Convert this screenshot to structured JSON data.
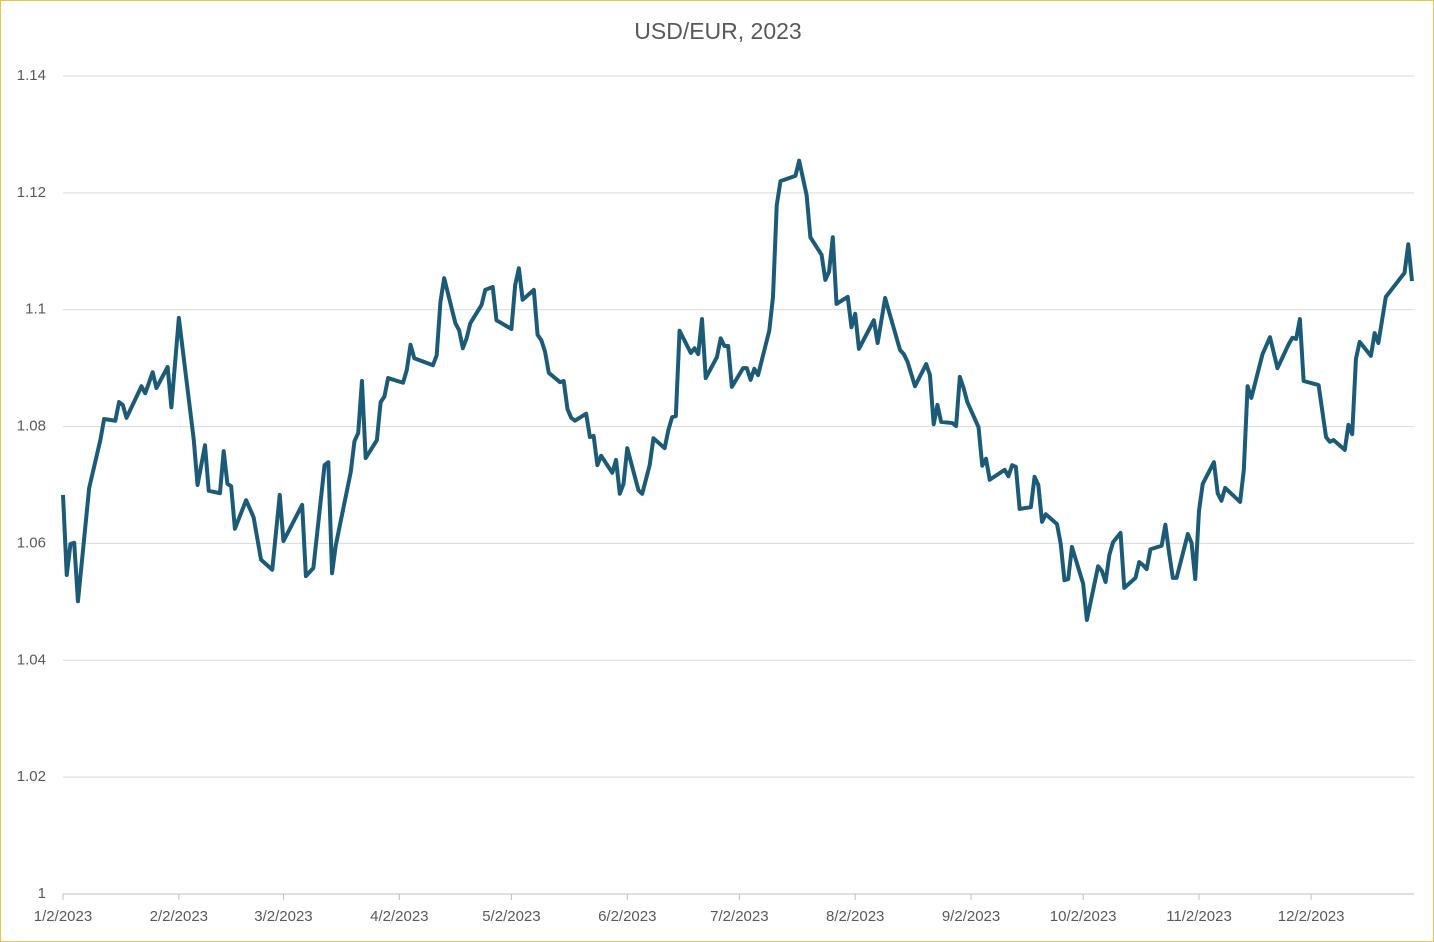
{
  "chart_data": {
    "type": "line",
    "title": "USD/EUR, 2023",
    "color": "#1b5b78",
    "grid": true,
    "xlim": [
      "1/2/2023",
      "12/29/2023"
    ],
    "xticks": [
      "1/2/2023",
      "2/2/2023",
      "3/2/2023",
      "4/2/2023",
      "5/2/2023",
      "6/2/2023",
      "7/2/2023",
      "8/2/2023",
      "9/2/2023",
      "10/2/2023",
      "11/2/2023",
      "12/2/2023"
    ],
    "ylim": [
      1,
      1.14
    ],
    "yticks": [
      1,
      1.02,
      1.04,
      1.06,
      1.08,
      1.1,
      1.12,
      1.14
    ],
    "x": [
      "1/2/2023",
      "1/3/2023",
      "1/4/2023",
      "1/5/2023",
      "1/6/2023",
      "1/9/2023",
      "1/12/2023",
      "1/13/2023",
      "1/16/2023",
      "1/17/2023",
      "1/18/2023",
      "1/19/2023",
      "1/23/2023",
      "1/24/2023",
      "1/26/2023",
      "1/27/2023",
      "1/30/2023",
      "1/31/2023",
      "2/2/2023",
      "2/6/2023",
      "2/7/2023",
      "2/9/2023",
      "2/10/2023",
      "2/13/2023",
      "2/14/2023",
      "2/15/2023",
      "2/16/2023",
      "2/17/2023",
      "2/20/2023",
      "2/22/2023",
      "2/24/2023",
      "2/27/2023",
      "3/1/2023",
      "3/2/2023",
      "3/7/2023",
      "3/8/2023",
      "3/10/2023",
      "3/13/2023",
      "3/14/2023",
      "3/15/2023",
      "3/16/2023",
      "3/20/2023",
      "3/21/2023",
      "3/22/2023",
      "3/23/2023",
      "3/24/2023",
      "3/27/2023",
      "3/28/2023",
      "3/29/2023",
      "3/30/2023",
      "4/3/2023",
      "4/4/2023",
      "4/5/2023",
      "4/6/2023",
      "4/11/2023",
      "4/12/2023",
      "4/13/2023",
      "4/14/2023",
      "4/17/2023",
      "4/18/2023",
      "4/19/2023",
      "4/20/2023",
      "4/21/2023",
      "4/24/2023",
      "4/25/2023",
      "4/27/2023",
      "4/28/2023",
      "5/2/2023",
      "5/3/2023",
      "5/4/2023",
      "5/5/2023",
      "5/8/2023",
      "5/9/2023",
      "5/10/2023",
      "5/11/2023",
      "5/12/2023",
      "5/15/2023",
      "5/16/2023",
      "5/17/2023",
      "5/18/2023",
      "5/19/2023",
      "5/22/2023",
      "5/23/2023",
      "5/24/2023",
      "5/25/2023",
      "5/26/2023",
      "5/29/2023",
      "5/30/2023",
      "5/31/2023",
      "6/1/2023",
      "6/2/2023",
      "6/5/2023",
      "6/6/2023",
      "6/8/2023",
      "6/9/2023",
      "6/12/2023",
      "6/13/2023",
      "6/14/2023",
      "6/15/2023",
      "6/16/2023",
      "6/19/2023",
      "6/20/2023",
      "6/21/2023",
      "6/22/2023",
      "6/23/2023",
      "6/26/2023",
      "6/27/2023",
      "6/28/2023",
      "6/29/2023",
      "6/30/2023",
      "7/3/2023",
      "7/4/2023",
      "7/5/2023",
      "7/6/2023",
      "7/7/2023",
      "7/10/2023",
      "7/11/2023",
      "7/12/2023",
      "7/13/2023",
      "7/17/2023",
      "7/18/2023",
      "7/20/2023",
      "7/21/2023",
      "7/24/2023",
      "7/25/2023",
      "7/26/2023",
      "7/27/2023",
      "7/28/2023",
      "7/31/2023",
      "8/1/2023",
      "8/2/2023",
      "8/3/2023",
      "8/7/2023",
      "8/8/2023",
      "8/10/2023",
      "8/14/2023",
      "8/15/2023",
      "8/16/2023",
      "8/18/2023",
      "8/21/2023",
      "8/22/2023",
      "8/23/2023",
      "8/24/2023",
      "8/25/2023",
      "8/28/2023",
      "8/29/2023",
      "8/30/2023",
      "8/31/2023",
      "9/1/2023",
      "9/4/2023",
      "9/5/2023",
      "9/6/2023",
      "9/7/2023",
      "9/11/2023",
      "9/12/2023",
      "9/13/2023",
      "9/14/2023",
      "9/15/2023",
      "9/18/2023",
      "9/19/2023",
      "9/20/2023",
      "9/21/2023",
      "9/22/2023",
      "9/25/2023",
      "9/26/2023",
      "9/27/2023",
      "9/28/2023",
      "9/29/2023",
      "10/2/2023",
      "10/3/2023",
      "10/6/2023",
      "10/7/2023",
      "10/8/2023",
      "10/9/2023",
      "10/10/2023",
      "10/12/2023",
      "10/13/2023",
      "10/16/2023",
      "10/17/2023",
      "10/18/2023",
      "10/19/2023",
      "10/20/2023",
      "10/23/2023",
      "10/24/2023",
      "10/25/2023",
      "10/26/2023",
      "10/27/2023",
      "10/30/2023",
      "10/31/2023",
      "11/1/2023",
      "11/2/2023",
      "11/3/2023",
      "11/6/2023",
      "11/7/2023",
      "11/8/2023",
      "11/9/2023",
      "11/13/2023",
      "11/14/2023",
      "11/15/2023",
      "11/16/2023",
      "11/19/2023",
      "11/21/2023",
      "11/23/2023",
      "11/26/2023",
      "11/27/2023",
      "11/28/2023",
      "11/29/2023",
      "11/30/2023",
      "12/4/2023",
      "12/6/2023",
      "12/7/2023",
      "12/8/2023",
      "12/11/2023",
      "12/12/2023",
      "12/13/2023",
      "12/14/2023",
      "12/15/2023",
      "12/18/2023",
      "12/19/2023",
      "12/20/2023",
      "12/22/2023",
      "12/27/2023",
      "12/28/2023",
      "12/29/2023"
    ],
    "values": [
      1.0683,
      1.0546,
      1.0599,
      1.0601,
      1.0501,
      1.0695,
      1.0777,
      1.0813,
      1.081,
      1.0842,
      1.0837,
      1.0815,
      1.0869,
      1.0857,
      1.0893,
      1.0866,
      1.0902,
      1.0833,
      1.0986,
      1.0777,
      1.07,
      1.0768,
      1.069,
      1.0686,
      1.0758,
      1.0702,
      1.0698,
      1.0625,
      1.0674,
      1.0645,
      1.0572,
      1.0555,
      1.0683,
      1.0604,
      1.0666,
      1.0544,
      1.0558,
      1.0734,
      1.0739,
      1.0549,
      1.0597,
      1.0722,
      1.0775,
      1.0789,
      1.0878,
      1.0746,
      1.0777,
      1.0842,
      1.0851,
      1.0883,
      1.0875,
      1.0897,
      1.094,
      1.0917,
      1.0905,
      1.0922,
      1.1013,
      1.1054,
      1.0977,
      1.0965,
      1.0934,
      1.0951,
      1.0977,
      1.1008,
      1.1034,
      1.1039,
      1.0982,
      1.0967,
      1.1042,
      1.1071,
      1.1017,
      1.1034,
      1.0957,
      1.0948,
      1.0928,
      1.0892,
      1.0876,
      1.0878,
      1.083,
      1.0815,
      1.081,
      1.0822,
      1.0782,
      1.0784,
      1.0734,
      1.075,
      1.0721,
      1.0743,
      1.0685,
      1.0702,
      1.0763,
      1.0691,
      1.0685,
      1.0734,
      1.078,
      1.0763,
      1.0794,
      1.0816,
      1.0818,
      1.0964,
      1.0926,
      1.0934,
      1.0924,
      1.0984,
      1.0883,
      1.0919,
      1.0951,
      1.0938,
      1.0938,
      1.0868,
      1.09,
      1.09,
      1.088,
      1.0899,
      1.0888,
      1.0964,
      1.1022,
      1.1179,
      1.122,
      1.1229,
      1.1255,
      1.1196,
      1.1124,
      1.1094,
      1.1051,
      1.1065,
      1.1124,
      1.101,
      1.1022,
      1.097,
      1.0993,
      1.0933,
      1.0982,
      1.0943,
      1.102,
      1.0931,
      1.0924,
      1.0911,
      1.0869,
      1.0907,
      1.0888,
      1.0804,
      1.0837,
      1.0808,
      1.0806,
      1.0801,
      1.0885,
      1.0866,
      1.0842,
      1.0799,
      1.0733,
      1.0745,
      1.0709,
      1.0726,
      1.0715,
      1.0734,
      1.0731,
      1.0659,
      1.0662,
      1.0714,
      1.07,
      1.0637,
      1.065,
      1.0633,
      1.0599,
      1.0537,
      1.0539,
      1.0594,
      1.0531,
      1.0469,
      1.0561,
      1.0553,
      1.0534,
      1.058,
      1.0602,
      1.0618,
      1.0524,
      1.0541,
      1.0568,
      1.0563,
      1.0556,
      1.059,
      1.0596,
      1.0632,
      1.0584,
      1.0541,
      1.0541,
      1.0616,
      1.0601,
      1.0539,
      1.0656,
      1.0702,
      1.0739,
      1.0686,
      1.0673,
      1.0695,
      1.0671,
      1.0726,
      1.0869,
      1.0849,
      1.0924,
      1.0953,
      1.09,
      1.0941,
      1.0952,
      1.095,
      1.0984,
      1.0878,
      1.0871,
      1.0782,
      1.0774,
      1.0777,
      1.076,
      1.0803,
      1.0787,
      1.0916,
      1.0945,
      1.0921,
      1.096,
      1.0943,
      1.1022,
      1.1063,
      1.1112,
      1.1049
    ]
  }
}
